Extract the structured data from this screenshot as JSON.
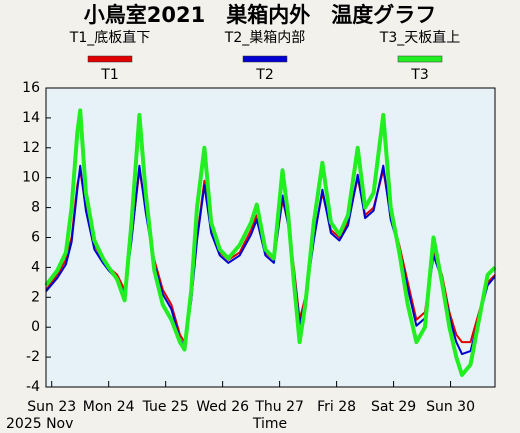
{
  "chart_data": {
    "type": "line",
    "title": "小鳥室2021　巣箱内外　温度グラフ",
    "x_label": "Time",
    "x_sublabel": "2025 Nov",
    "xlim": [
      -0.1,
      7.78
    ],
    "xticks": [
      {
        "value": 0,
        "label": "Sun 23"
      },
      {
        "value": 1,
        "label": "Mon 24"
      },
      {
        "value": 2,
        "label": "Tue 25"
      },
      {
        "value": 3,
        "label": "Wed 26"
      },
      {
        "value": 4,
        "label": "Thu 27"
      },
      {
        "value": 5,
        "label": "Fri 28"
      },
      {
        "value": 6,
        "label": "Sat 29"
      },
      {
        "value": 7,
        "label": "Sun 30"
      }
    ],
    "ylim": [
      -4,
      16
    ],
    "yticks": [
      -4,
      -2,
      0,
      2,
      4,
      6,
      8,
      10,
      12,
      14,
      16
    ],
    "grid": false,
    "legend": "top",
    "x": [
      -0.1,
      0.1,
      0.25,
      0.35,
      0.45,
      0.5,
      0.6,
      0.75,
      0.9,
      1.0,
      1.15,
      1.28,
      1.4,
      1.54,
      1.65,
      1.8,
      1.95,
      2.1,
      2.25,
      2.33,
      2.45,
      2.55,
      2.68,
      2.8,
      2.95,
      3.1,
      3.3,
      3.5,
      3.6,
      3.75,
      3.9,
      4.05,
      4.15,
      4.25,
      4.35,
      4.45,
      4.6,
      4.75,
      4.9,
      5.05,
      5.2,
      5.37,
      5.5,
      5.65,
      5.82,
      5.95,
      6.1,
      6.25,
      6.4,
      6.55,
      6.7,
      6.85,
      6.98,
      7.1,
      7.2,
      7.35,
      7.5,
      7.65,
      7.78
    ],
    "series": [
      {
        "name": "T1",
        "label": "T1_底板直下",
        "color": "#e00000",
        "width": 2,
        "values": [
          2.5,
          3.5,
          4.5,
          6,
          9.5,
          10.5,
          8,
          5.5,
          4.5,
          4,
          3.5,
          2.5,
          6,
          10.5,
          8,
          4.5,
          2.5,
          1.5,
          -0.5,
          -1,
          2,
          6,
          9.8,
          6.5,
          5,
          4.5,
          5,
          6.5,
          7.5,
          5,
          4.5,
          8.5,
          7,
          4,
          0.5,
          2,
          6,
          9,
          6.5,
          6,
          7,
          10,
          7.5,
          8,
          10.5,
          7.5,
          5.5,
          3,
          0.5,
          1,
          5,
          3.5,
          1,
          -0.5,
          -1,
          -1,
          1,
          3,
          3.5
        ]
      },
      {
        "name": "T2",
        "label": "T2_巣箱内部",
        "color": "#0000d0",
        "width": 2,
        "values": [
          2.4,
          3.3,
          4.2,
          5.7,
          9.2,
          10.8,
          7.8,
          5.2,
          4.3,
          3.8,
          3.2,
          2.2,
          5.8,
          10.8,
          7.7,
          4.2,
          2.2,
          1.2,
          -0.8,
          -1.3,
          1.8,
          5.8,
          9.5,
          6.3,
          4.8,
          4.3,
          4.8,
          6.2,
          7.2,
          4.8,
          4.3,
          8.8,
          6.8,
          3.7,
          0.2,
          1.7,
          5.8,
          9.2,
          6.3,
          5.8,
          6.8,
          10.2,
          7.3,
          7.8,
          10.8,
          7.2,
          5.2,
          2.6,
          0.1,
          0.6,
          4.8,
          3.2,
          0.7,
          -1,
          -1.8,
          -1.6,
          0.6,
          2.8,
          3.4
        ]
      },
      {
        "name": "T3",
        "label": "T3_天板直上",
        "color": "#22ee22",
        "width": 4,
        "values": [
          2.8,
          3.8,
          5,
          8,
          13,
          14.5,
          9,
          5.8,
          4.6,
          4,
          3.2,
          1.8,
          7,
          14.2,
          9,
          3.8,
          1.5,
          0.5,
          -1,
          -1.5,
          2.5,
          8,
          12,
          7,
          5.2,
          4.6,
          5.5,
          7,
          8.2,
          5.2,
          4.6,
          10.5,
          7.5,
          3,
          -1,
          1.5,
          7,
          11,
          7,
          6.2,
          7.5,
          12,
          8,
          9,
          14.2,
          8,
          5,
          1.5,
          -1,
          0,
          6,
          3,
          0,
          -2,
          -3.2,
          -2.5,
          0.5,
          3.5,
          4
        ]
      }
    ]
  }
}
